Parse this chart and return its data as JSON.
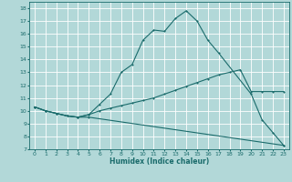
{
  "xlabel": "Humidex (Indice chaleur)",
  "bg_color": "#b2d8d8",
  "grid_color": "#ffffff",
  "line_color": "#1a6b6b",
  "xlim": [
    -0.5,
    23.5
  ],
  "ylim": [
    7,
    18.5
  ],
  "xticks": [
    0,
    1,
    2,
    3,
    4,
    5,
    6,
    7,
    8,
    9,
    10,
    11,
    12,
    13,
    14,
    15,
    16,
    17,
    18,
    19,
    20,
    21,
    22,
    23
  ],
  "yticks": [
    7,
    8,
    9,
    10,
    11,
    12,
    13,
    14,
    15,
    16,
    17,
    18
  ],
  "line1_x": [
    0,
    1,
    2,
    3,
    4,
    5,
    6,
    7,
    8,
    9,
    10,
    11,
    12,
    13,
    14,
    15,
    16,
    17,
    20,
    21,
    22,
    23
  ],
  "line1_y": [
    10.3,
    10.0,
    9.8,
    9.6,
    9.5,
    9.7,
    10.5,
    11.3,
    13.0,
    13.6,
    15.5,
    16.3,
    16.2,
    17.2,
    17.8,
    17.0,
    15.5,
    14.5,
    11.3,
    9.3,
    8.3,
    7.3
  ],
  "line2_x": [
    0,
    1,
    2,
    3,
    4,
    5,
    6,
    7,
    8,
    9,
    10,
    11,
    12,
    13,
    14,
    15,
    16,
    17,
    18,
    19,
    20,
    21,
    22,
    23
  ],
  "line2_y": [
    10.3,
    10.0,
    9.8,
    9.6,
    9.5,
    9.7,
    10.0,
    10.2,
    10.4,
    10.6,
    10.8,
    11.0,
    11.3,
    11.6,
    11.9,
    12.2,
    12.5,
    12.8,
    13.0,
    13.2,
    11.5,
    11.5,
    11.5,
    11.5
  ],
  "line3_x": [
    0,
    1,
    2,
    3,
    4,
    5,
    23
  ],
  "line3_y": [
    10.3,
    10.0,
    9.8,
    9.6,
    9.5,
    9.5,
    7.3
  ]
}
